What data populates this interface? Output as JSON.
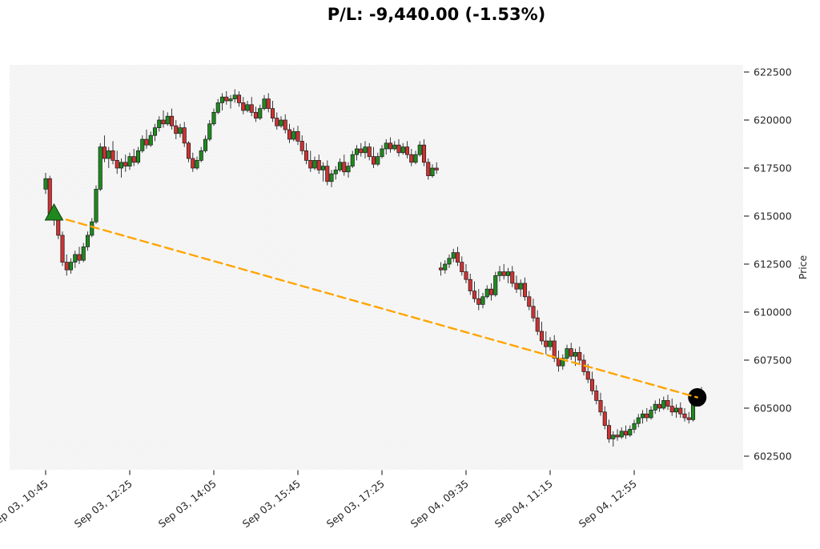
{
  "title": "P/L: -9,440.00 (-1.53%)",
  "colors": {
    "up": "#1e8a1e",
    "down": "#cc3333",
    "wick": "#3a3a3a",
    "edge": "#1a1a1a",
    "trade_line": "#FFA500",
    "entry_marker": "#1e8a1e",
    "exit_marker": "#000000",
    "plot_bg": "#f2f2f2",
    "tick_text": "#262626"
  },
  "chart_data": {
    "type": "candlestick",
    "title": "P/L: -9,440.00 (-1.53%)",
    "ylabel": "Price",
    "xlabel": "",
    "grid": false,
    "y_ticks": [
      602500,
      605000,
      607500,
      610000,
      612500,
      615000,
      617500,
      620000,
      622500
    ],
    "ylim": [
      601750,
      622875
    ],
    "x_ticks": [
      {
        "index": 0,
        "label": "Sep 03, 10:45"
      },
      {
        "index": 20,
        "label": "Sep 03, 12:25"
      },
      {
        "index": 40,
        "label": "Sep 03, 14:05"
      },
      {
        "index": 60,
        "label": "Sep 03, 15:45"
      },
      {
        "index": 80,
        "label": "Sep 03, 17:25"
      },
      {
        "index": 100,
        "label": "Sep 04, 09:35"
      },
      {
        "index": 120,
        "label": "Sep 04, 11:15"
      },
      {
        "index": 140,
        "label": "Sep 04, 12:55"
      }
    ],
    "session_break_index": 94,
    "trade": {
      "pl_value": "-9,440.00",
      "pl_percent": "-1.53%",
      "entry": {
        "index": 2,
        "price": 615000,
        "marker": "triangle-up",
        "color": "#1e8a1e"
      },
      "exit": {
        "index": 155,
        "price": 605560,
        "marker": "circle",
        "color": "#000000"
      },
      "line": {
        "color": "#FFA500",
        "style": "dashed"
      }
    },
    "candles_format": [
      "open",
      "high",
      "low",
      "close"
    ],
    "candles": [
      [
        616400,
        617250,
        616150,
        616950
      ],
      [
        616950,
        617100,
        614900,
        615100
      ],
      [
        615100,
        615400,
        614500,
        614800
      ],
      [
        614800,
        615100,
        613800,
        614000
      ],
      [
        614000,
        614200,
        612400,
        612600
      ],
      [
        612600,
        613000,
        611900,
        612200
      ],
      [
        612200,
        612800,
        612000,
        612600
      ],
      [
        612600,
        613200,
        612300,
        613000
      ],
      [
        613000,
        613400,
        612500,
        612700
      ],
      [
        612700,
        613600,
        612600,
        613400
      ],
      [
        613400,
        614200,
        613200,
        614000
      ],
      [
        614000,
        614900,
        613900,
        614700
      ],
      [
        614700,
        616600,
        614600,
        616400
      ],
      [
        616400,
        618800,
        616300,
        618600
      ],
      [
        618600,
        619200,
        617800,
        618000
      ],
      [
        618000,
        618600,
        617500,
        618400
      ],
      [
        618400,
        618900,
        617700,
        617900
      ],
      [
        617900,
        618400,
        617200,
        617500
      ],
      [
        617500,
        618000,
        617000,
        617800
      ],
      [
        617800,
        618200,
        617300,
        617600
      ],
      [
        617600,
        618300,
        617400,
        618100
      ],
      [
        618100,
        618500,
        617600,
        617800
      ],
      [
        617800,
        618600,
        617700,
        618400
      ],
      [
        618400,
        619200,
        618300,
        619000
      ],
      [
        619000,
        619500,
        618500,
        618700
      ],
      [
        618700,
        619400,
        618600,
        619200
      ],
      [
        619200,
        619800,
        618900,
        619600
      ],
      [
        619600,
        620200,
        619400,
        620000
      ],
      [
        620000,
        620500,
        619600,
        619800
      ],
      [
        619800,
        620400,
        619700,
        620200
      ],
      [
        620200,
        620600,
        619500,
        619700
      ],
      [
        619700,
        620000,
        619000,
        619300
      ],
      [
        619300,
        619800,
        619100,
        619600
      ],
      [
        619600,
        619900,
        618600,
        618800
      ],
      [
        618800,
        618900,
        617800,
        618000
      ],
      [
        618000,
        618300,
        617300,
        617500
      ],
      [
        617500,
        618100,
        617400,
        617900
      ],
      [
        617900,
        618600,
        617800,
        618400
      ],
      [
        618400,
        619200,
        618300,
        619000
      ],
      [
        619000,
        620000,
        618900,
        619800
      ],
      [
        619800,
        620600,
        619700,
        620400
      ],
      [
        620400,
        621100,
        620300,
        620900
      ],
      [
        620900,
        621400,
        620500,
        621200
      ],
      [
        621200,
        621500,
        620800,
        621000
      ],
      [
        621000,
        621300,
        620600,
        621100
      ],
      [
        621100,
        621600,
        620900,
        621300
      ],
      [
        621300,
        621500,
        620700,
        620900
      ],
      [
        620900,
        621200,
        620300,
        620500
      ],
      [
        620500,
        621000,
        620400,
        620800
      ],
      [
        620800,
        621200,
        620200,
        620400
      ],
      [
        620400,
        620700,
        619900,
        620100
      ],
      [
        620100,
        620800,
        620000,
        620600
      ],
      [
        620600,
        621300,
        620500,
        621100
      ],
      [
        621100,
        621400,
        620400,
        620600
      ],
      [
        620600,
        621000,
        619900,
        620100
      ],
      [
        620100,
        620400,
        619500,
        619700
      ],
      [
        619700,
        620200,
        619600,
        620000
      ],
      [
        620000,
        620300,
        619300,
        619500
      ],
      [
        619500,
        619800,
        618800,
        619000
      ],
      [
        619000,
        619600,
        618900,
        619400
      ],
      [
        619400,
        619700,
        618700,
        618900
      ],
      [
        618900,
        619200,
        618200,
        618400
      ],
      [
        618400,
        618800,
        617700,
        617900
      ],
      [
        617900,
        618400,
        617300,
        617500
      ],
      [
        617500,
        618100,
        617400,
        617900
      ],
      [
        617900,
        618200,
        617200,
        617400
      ],
      [
        617400,
        617800,
        616800,
        617600
      ],
      [
        617600,
        617900,
        616600,
        616800
      ],
      [
        616800,
        617400,
        616500,
        617200
      ],
      [
        617200,
        617600,
        616900,
        617400
      ],
      [
        617400,
        618000,
        617300,
        617800
      ],
      [
        617800,
        618200,
        617100,
        617300
      ],
      [
        617300,
        617800,
        617000,
        617600
      ],
      [
        617600,
        618400,
        617500,
        618200
      ],
      [
        618200,
        618700,
        617900,
        618500
      ],
      [
        618500,
        618800,
        618100,
        618300
      ],
      [
        618300,
        618900,
        618000,
        618600
      ],
      [
        618600,
        618800,
        617900,
        618100
      ],
      [
        618100,
        618600,
        617500,
        617700
      ],
      [
        617700,
        618300,
        617600,
        618100
      ],
      [
        618100,
        618700,
        618000,
        618500
      ],
      [
        618500,
        619000,
        618200,
        618800
      ],
      [
        618800,
        619100,
        618300,
        618500
      ],
      [
        618500,
        618900,
        618400,
        618700
      ],
      [
        618700,
        619000,
        618100,
        618300
      ],
      [
        618300,
        618800,
        618200,
        618600
      ],
      [
        618600,
        618900,
        618000,
        618200
      ],
      [
        618200,
        618500,
        617600,
        617800
      ],
      [
        617800,
        618400,
        617700,
        618200
      ],
      [
        618200,
        618900,
        618100,
        618700
      ],
      [
        618700,
        619000,
        617600,
        617800
      ],
      [
        617800,
        618000,
        616900,
        617100
      ],
      [
        617100,
        617700,
        617000,
        617500
      ],
      [
        617500,
        617800,
        617200,
        617400
      ],
      [
        612300,
        612600,
        611900,
        612200
      ],
      [
        612200,
        612700,
        612000,
        612500
      ],
      [
        612500,
        613000,
        612300,
        612800
      ],
      [
        612800,
        613300,
        612600,
        613100
      ],
      [
        613100,
        613400,
        612400,
        612600
      ],
      [
        612600,
        612900,
        611900,
        612100
      ],
      [
        612100,
        612500,
        611500,
        611700
      ],
      [
        611700,
        612000,
        610900,
        611100
      ],
      [
        611100,
        611600,
        610500,
        610700
      ],
      [
        610700,
        611200,
        610100,
        610400
      ],
      [
        610400,
        611000,
        610200,
        610800
      ],
      [
        610800,
        611400,
        610700,
        611200
      ],
      [
        611200,
        611500,
        610600,
        610900
      ],
      [
        610900,
        612100,
        610800,
        611900
      ],
      [
        611900,
        612400,
        611600,
        612100
      ],
      [
        612100,
        612500,
        611700,
        611900
      ],
      [
        611900,
        612300,
        611500,
        612100
      ],
      [
        612100,
        612400,
        611300,
        611500
      ],
      [
        611500,
        611900,
        611000,
        611200
      ],
      [
        611200,
        611700,
        610800,
        611500
      ],
      [
        611500,
        611800,
        610600,
        610800
      ],
      [
        610800,
        611100,
        610100,
        610300
      ],
      [
        610300,
        610700,
        609500,
        609700
      ],
      [
        609700,
        610100,
        608800,
        609000
      ],
      [
        609000,
        609500,
        608300,
        608500
      ],
      [
        608500,
        609000,
        607800,
        608200
      ],
      [
        608200,
        608700,
        608000,
        608500
      ],
      [
        608500,
        608800,
        607400,
        607600
      ],
      [
        607600,
        608000,
        606900,
        607200
      ],
      [
        607200,
        607800,
        607000,
        607600
      ],
      [
        607600,
        608300,
        607400,
        608100
      ],
      [
        608100,
        608400,
        607500,
        607700
      ],
      [
        607700,
        608100,
        607200,
        607900
      ],
      [
        607900,
        608200,
        607300,
        607500
      ],
      [
        607500,
        607800,
        606700,
        606900
      ],
      [
        606900,
        607300,
        606300,
        606500
      ],
      [
        606500,
        606900,
        605700,
        605900
      ],
      [
        605900,
        606200,
        605200,
        605400
      ],
      [
        605400,
        605800,
        604600,
        604800
      ],
      [
        604800,
        605100,
        603900,
        604100
      ],
      [
        604100,
        604400,
        603200,
        603400
      ],
      [
        603400,
        603800,
        603000,
        603600
      ],
      [
        603600,
        603900,
        603300,
        603500
      ],
      [
        603500,
        604000,
        603400,
        603800
      ],
      [
        603800,
        604100,
        603400,
        603600
      ],
      [
        603600,
        604100,
        603500,
        603900
      ],
      [
        603900,
        604400,
        603700,
        604200
      ],
      [
        604200,
        604700,
        604000,
        604500
      ],
      [
        604500,
        604900,
        604200,
        604700
      ],
      [
        604700,
        605000,
        604300,
        604500
      ],
      [
        604500,
        605100,
        604400,
        604900
      ],
      [
        604900,
        605400,
        604700,
        605200
      ],
      [
        605200,
        605500,
        604800,
        605000
      ],
      [
        605000,
        605600,
        604900,
        605400
      ],
      [
        605400,
        605700,
        604900,
        605100
      ],
      [
        605100,
        605500,
        604600,
        604800
      ],
      [
        604800,
        605200,
        604500,
        605000
      ],
      [
        605000,
        605300,
        604500,
        604700
      ],
      [
        604700,
        605000,
        604300,
        604500
      ],
      [
        604500,
        604800,
        604200,
        604400
      ],
      [
        604400,
        605700,
        604300,
        605600
      ],
      [
        605600,
        606000,
        605300,
        605560
      ],
      [
        605560,
        606100,
        605400,
        605900
      ]
    ]
  }
}
